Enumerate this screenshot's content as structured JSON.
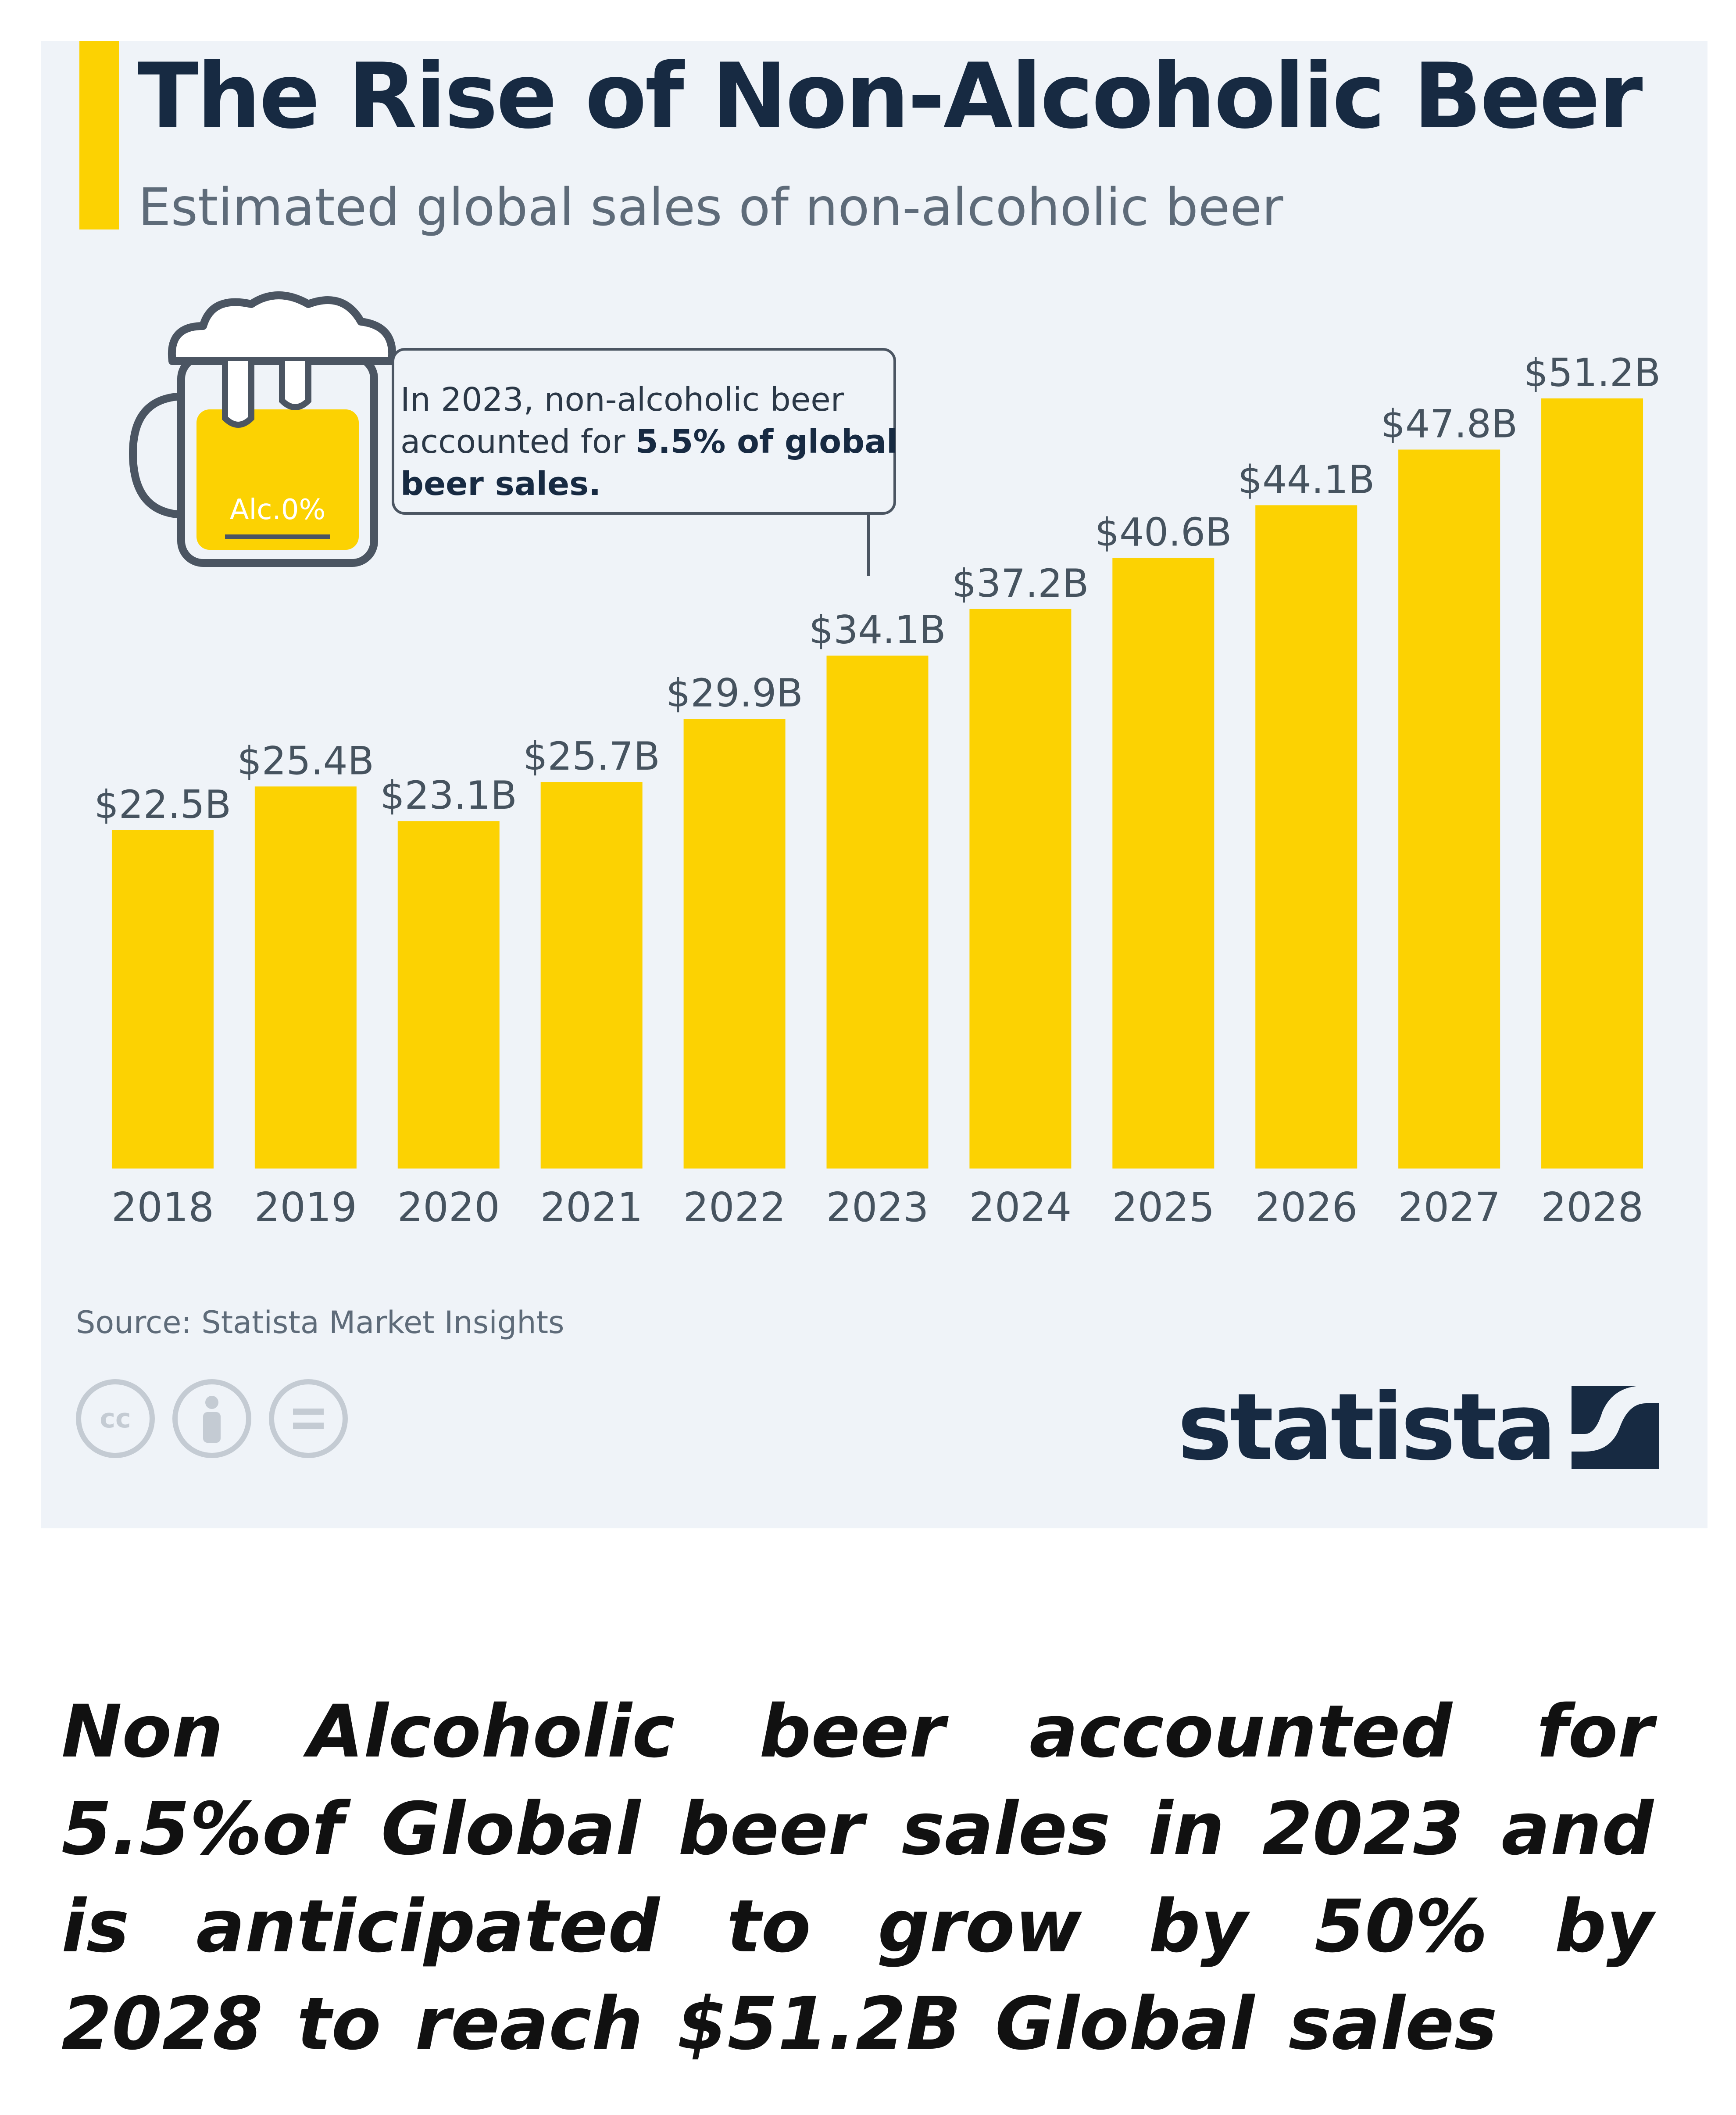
{
  "header": {
    "title": "The Rise of Non-Alcoholic Beer",
    "subtitle": "Estimated global sales of non-alcoholic beer"
  },
  "callout": {
    "text_before": "In 2023, non-alcoholic beer accounted for ",
    "text_bold": "5.5% of global beer sales.",
    "mug_label": "Alc.0%"
  },
  "chart_data": {
    "type": "bar",
    "categories": [
      "2018",
      "2019",
      "2020",
      "2021",
      "2022",
      "2023",
      "2024",
      "2025",
      "2026",
      "2027",
      "2028"
    ],
    "values": [
      22.5,
      25.4,
      23.1,
      25.7,
      29.9,
      34.1,
      37.2,
      40.6,
      44.1,
      47.8,
      51.2
    ],
    "value_labels": [
      "$22.5B",
      "$25.4B",
      "$23.1B",
      "$25.7B",
      "$29.9B",
      "$34.1B",
      "$37.2B",
      "$40.6B",
      "$44.1B",
      "$47.8B",
      "$51.2B"
    ],
    "title": "The Rise of Non-Alcoholic Beer",
    "subtitle": "Estimated global sales of non-alcoholic beer",
    "xlabel": "",
    "ylabel": "",
    "ylim": [
      0,
      51.2
    ],
    "grid": false,
    "bar_color": "#fcd202"
  },
  "footer": {
    "source": "Source: Statista Market Insights",
    "brand": "statista",
    "license_icons": [
      "cc-icon",
      "person-icon",
      "equals-icon"
    ]
  },
  "caption": "Non Alcoholic beer accounted for 5.5%of Global beer sales in 2023 and is anticipated to grow by 50% by 2028 to reach $51.2B Global sales",
  "colors": {
    "accent": "#fcd202",
    "navy": "#172a42",
    "card_bg": "#eff3f8"
  }
}
